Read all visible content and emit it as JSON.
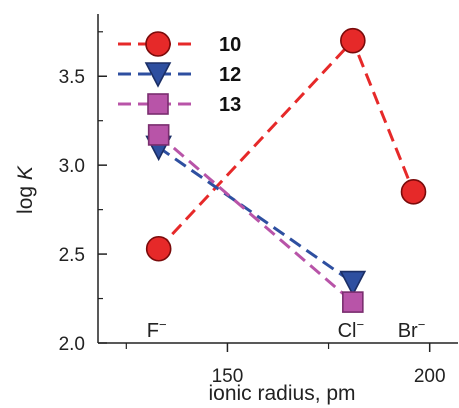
{
  "chart_data": {
    "type": "line",
    "xlabel": "ionic radius, pm",
    "ylabel_prefix": "log",
    "ylabel_var": "K",
    "xlim": [
      118,
      207
    ],
    "ylim": [
      2.0,
      3.85
    ],
    "x_ticks": [
      150,
      200
    ],
    "x_minor_ticks": [
      125,
      175
    ],
    "y_ticks": [
      2.0,
      2.5,
      3.0,
      3.5
    ],
    "y_tick_labels": [
      "2.0",
      "2.5",
      "3.0",
      "3.5"
    ],
    "x_tick_labels": [
      "150",
      "200"
    ],
    "grid": false,
    "legend_position": "top-left",
    "annotations": [
      {
        "base": "F",
        "charge": "−",
        "x": 133
      },
      {
        "base": "Cl",
        "charge": "−",
        "x": 181
      },
      {
        "base": "Br",
        "charge": "−",
        "x": 196
      }
    ],
    "series": [
      {
        "name": "10",
        "marker": "circle",
        "color": "#e62929",
        "x": [
          133,
          181,
          196
        ],
        "y": [
          2.53,
          3.7,
          2.85
        ]
      },
      {
        "name": "12",
        "marker": "triangle-down",
        "color": "#2e4fa0",
        "x": [
          133,
          181
        ],
        "y": [
          3.1,
          2.34
        ]
      },
      {
        "name": "13",
        "marker": "square",
        "color": "#b854a8",
        "x": [
          133,
          181
        ],
        "y": [
          3.17,
          2.23
        ]
      }
    ]
  }
}
